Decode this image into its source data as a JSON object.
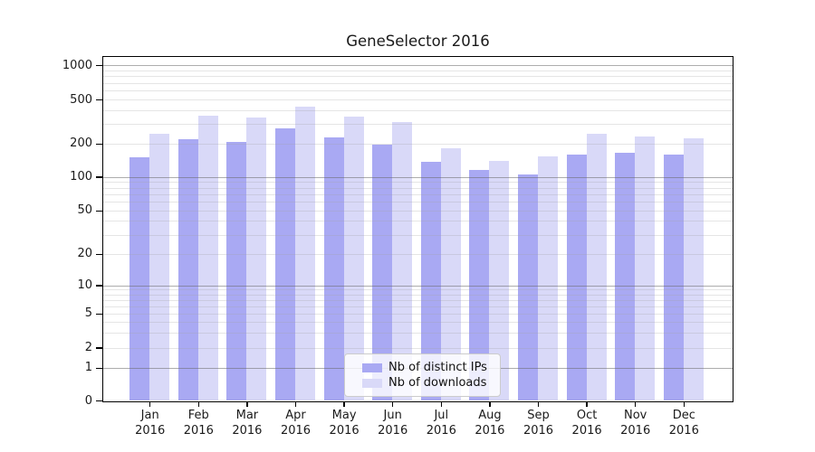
{
  "title": "GeneSelector 2016",
  "chart_data": {
    "type": "bar",
    "categories": [
      "Jan",
      "Feb",
      "Mar",
      "Apr",
      "May",
      "Jun",
      "Jul",
      "Aug",
      "Sep",
      "Oct",
      "Nov",
      "Dec"
    ],
    "category_year": "2016",
    "series": [
      {
        "name": "Nb of distinct IPs",
        "color": "#a9a9f3",
        "values": [
          150,
          218,
          208,
          277,
          228,
          195,
          137,
          115,
          105,
          160,
          165,
          160
        ]
      },
      {
        "name": "Nb of downloads",
        "color": "#d9d9f8",
        "values": [
          245,
          360,
          345,
          435,
          350,
          315,
          180,
          140,
          153,
          245,
          233,
          222
        ]
      }
    ],
    "title": "GeneSelector 2016",
    "xlabel": "",
    "ylabel": "",
    "yscale": "log-like (symlog, linear below 1)",
    "ytick_labels": [
      "0",
      "1",
      "2",
      "5",
      "10",
      "20",
      "50",
      "100",
      "200",
      "500",
      "1000"
    ],
    "ytick_values": [
      0,
      1,
      2,
      5,
      10,
      20,
      50,
      100,
      200,
      500,
      1000
    ],
    "ylim": [
      0,
      1200
    ],
    "grid": "horizontal major and minor gridlines, drawn over bars",
    "legend_position": "lower center inside plot"
  }
}
